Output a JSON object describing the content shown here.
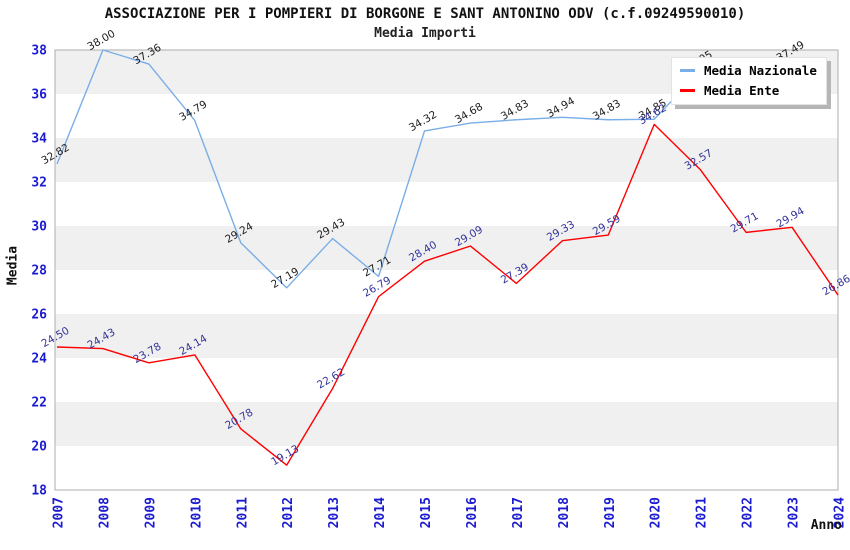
{
  "chart_data": {
    "type": "line",
    "title": "ASSOCIAZIONE PER I POMPIERI DI BORGONE E SANT ANTONINO ODV (c.f.09249590010)",
    "subtitle": "Media Importi",
    "xlabel": "Anno",
    "ylabel": "Media",
    "x": [
      2007,
      2008,
      2009,
      2010,
      2011,
      2012,
      2013,
      2014,
      2015,
      2016,
      2017,
      2018,
      2019,
      2020,
      2021,
      2022,
      2023,
      2024
    ],
    "ylim": [
      18,
      38
    ],
    "ytick_step": 2,
    "grid": "alternating-bands",
    "legend_position": "top-right",
    "series": [
      {
        "name": "Media Nazionale",
        "color": "#7aaee6",
        "label_color": "#1c1c1c",
        "values": [
          32.82,
          38.0,
          37.36,
          34.79,
          29.24,
          27.19,
          29.43,
          27.71,
          34.32,
          34.68,
          34.83,
          34.94,
          34.83,
          34.85,
          37.05,
          null,
          37.49,
          null
        ],
        "note_labels_hidden_by_legend": [
          2022,
          2023
        ]
      },
      {
        "name": "Media Ente",
        "color": "#ff0000",
        "label_color": "#32329b",
        "values": [
          24.5,
          24.43,
          23.78,
          24.14,
          20.78,
          19.13,
          22.62,
          26.79,
          28.4,
          29.09,
          27.39,
          29.33,
          29.59,
          34.62,
          32.57,
          29.71,
          29.94,
          26.86
        ]
      }
    ],
    "colors": {
      "axis_text": "#1b1bd0",
      "band_gray": "#f0f0f0",
      "band_white": "#ffffff",
      "plot_border": "#aeaeae"
    }
  }
}
